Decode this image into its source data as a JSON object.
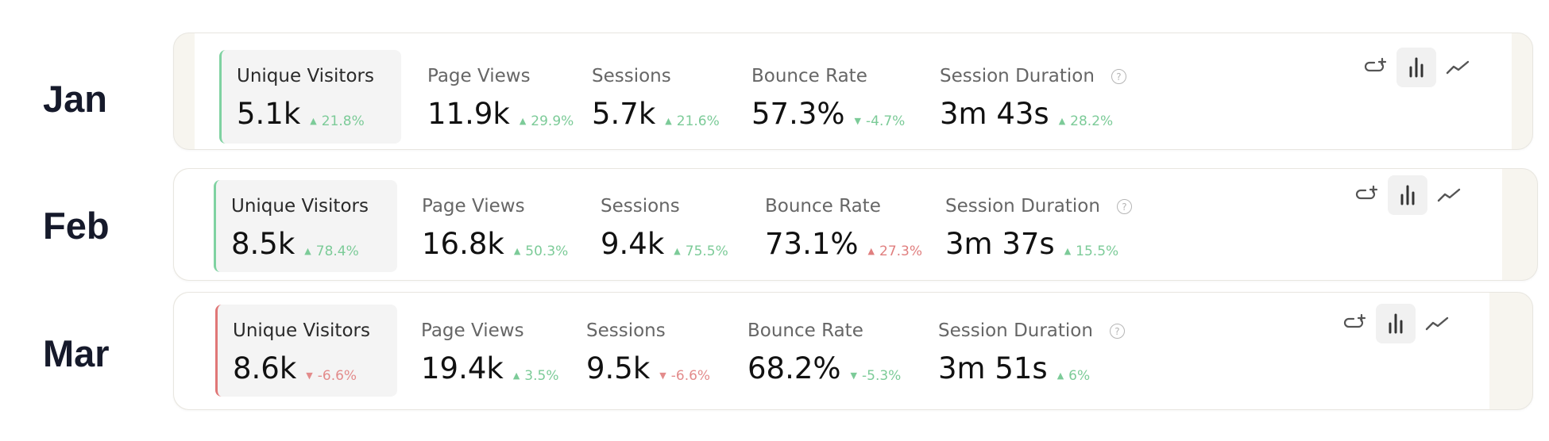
{
  "rows": [
    {
      "month": "Jan",
      "metrics": [
        {
          "label": "Unique Visitors",
          "value": "5.1k",
          "change": "21.8%"
        },
        {
          "label": "Page Views",
          "value": "11.9k",
          "change": "29.9%"
        },
        {
          "label": "Sessions",
          "value": "5.7k",
          "change": "21.6%"
        },
        {
          "label": "Bounce Rate",
          "value": "57.3%",
          "change": "-4.7%"
        },
        {
          "label": "Session Duration",
          "value": "3m 43s",
          "change": "28.2%"
        }
      ]
    },
    {
      "month": "Feb",
      "metrics": [
        {
          "label": "Unique Visitors",
          "value": "8.5k",
          "change": "78.4%"
        },
        {
          "label": "Page Views",
          "value": "16.8k",
          "change": "50.3%"
        },
        {
          "label": "Sessions",
          "value": "9.4k",
          "change": "75.5%"
        },
        {
          "label": "Bounce Rate",
          "value": "73.1%",
          "change": "27.3%"
        },
        {
          "label": "Session Duration",
          "value": "3m 37s",
          "change": "15.5%"
        }
      ]
    },
    {
      "month": "Mar",
      "metrics": [
        {
          "label": "Unique Visitors",
          "value": "8.6k",
          "change": "-6.6%"
        },
        {
          "label": "Page Views",
          "value": "19.4k",
          "change": "3.5%"
        },
        {
          "label": "Sessions",
          "value": "9.5k",
          "change": "-6.6%"
        },
        {
          "label": "Bounce Rate",
          "value": "68.2%",
          "change": "-5.3%"
        },
        {
          "label": "Session Duration",
          "value": "3m 51s",
          "change": "6%"
        }
      ]
    }
  ],
  "help_glyph": "?",
  "colors": {
    "positive": "#7ccb98",
    "negative": "#e07f7f",
    "selected_bg": "#f4f4f4",
    "card_bg": "#f7f5ef"
  },
  "icons": [
    "add-comparison-icon",
    "bar-chart-icon",
    "line-chart-icon"
  ]
}
